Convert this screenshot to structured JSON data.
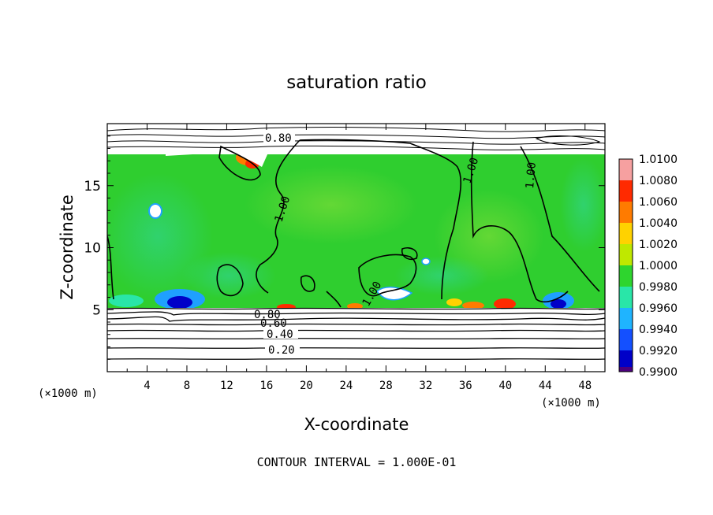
{
  "chart_data": {
    "type": "heatmap",
    "title": "saturation ratio",
    "xlabel": "X-coordinate",
    "ylabel": "Z-coordinate",
    "x_unit": "(×1000 m)",
    "y_unit": "(×1000 m)",
    "xlim": [
      0,
      50
    ],
    "ylim": [
      0,
      20
    ],
    "x_ticks": [
      4,
      8,
      12,
      16,
      20,
      24,
      28,
      32,
      36,
      40,
      44,
      48
    ],
    "y_ticks": [
      5,
      10,
      15
    ],
    "colorbar": {
      "levels": [
        "1.0100",
        "1.0080",
        "1.0060",
        "1.0040",
        "1.0020",
        "1.0000",
        "0.9980",
        "0.9960",
        "0.9940",
        "0.9920",
        "0.9900"
      ],
      "colors": [
        "#f6a0a0",
        "#ff2a00",
        "#ff7b00",
        "#ffd200",
        "#bfe800",
        "#2ed52e",
        "#29e6a8",
        "#1fb4ff",
        "#1450ff",
        "#0000c8",
        "#4b007d"
      ]
    },
    "contour_labels": [
      "0.80",
      "1.00",
      "1.00",
      "1.00",
      "1.00",
      "0.80",
      "0.60",
      "0.40",
      "0.20"
    ],
    "footer": "CONTOUR INTERVAL = 1.000E-01"
  }
}
